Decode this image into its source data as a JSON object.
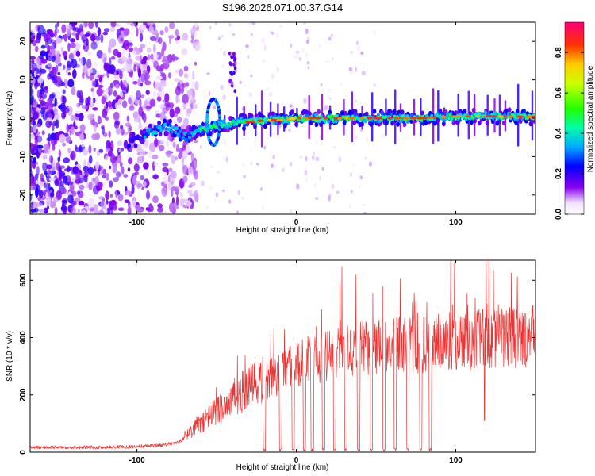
{
  "title": "S196.2026.071.00.37.G14",
  "chart_data": [
    {
      "type": "heatmap",
      "title": "S196.2026.071.00.37.G14",
      "xlabel": "Height of straight line (km)",
      "ylabel": "Frequency (Hz)",
      "xlim": [
        -167,
        150
      ],
      "ylim": [
        -25,
        25
      ],
      "xticks": [
        -100,
        0,
        100
      ],
      "yticks": [
        -20,
        -10,
        0,
        10,
        20
      ],
      "colorbar": {
        "label": "Normalized spectral amplitude",
        "range": [
          0,
          0.95
        ],
        "ticks": [
          0.0,
          0.2,
          0.4,
          0.6,
          0.8
        ],
        "tick_labels": [
          "0.0",
          "0.2",
          "0.4",
          "0.6",
          "0.8"
        ]
      },
      "ridge": {
        "description_points_x": [
          -100,
          -90,
          -80,
          -70,
          -60,
          -50,
          -40,
          -30,
          -20,
          -10,
          0,
          20,
          40,
          60,
          80,
          100,
          120,
          150
        ],
        "description_points_y": [
          -5.5,
          -3.5,
          -2,
          -5,
          -3,
          -2,
          -1,
          -1,
          -0.5,
          -0.5,
          0,
          0,
          0,
          0,
          0,
          0.5,
          0.5,
          0.3
        ]
      }
    },
    {
      "type": "line",
      "xlabel": "Height of straight line (km)",
      "ylabel": "SNR (10 * v/v)",
      "xlim": [
        -167,
        150
      ],
      "ylim": [
        0,
        670
      ],
      "xticks": [
        -100,
        0,
        100
      ],
      "yticks": [
        0,
        200,
        400,
        600
      ],
      "color": "#ee3333",
      "envelope_x": [
        -167,
        -120,
        -90,
        -75,
        -60,
        -45,
        -30,
        -10,
        0,
        20,
        40,
        60,
        80,
        100,
        120,
        150
      ],
      "envelope_y": [
        15,
        15,
        20,
        30,
        90,
        150,
        200,
        250,
        280,
        310,
        330,
        340,
        345,
        355,
        360,
        370
      ]
    }
  ],
  "colors": {
    "line": "#ee3333",
    "axis": "#000000"
  }
}
